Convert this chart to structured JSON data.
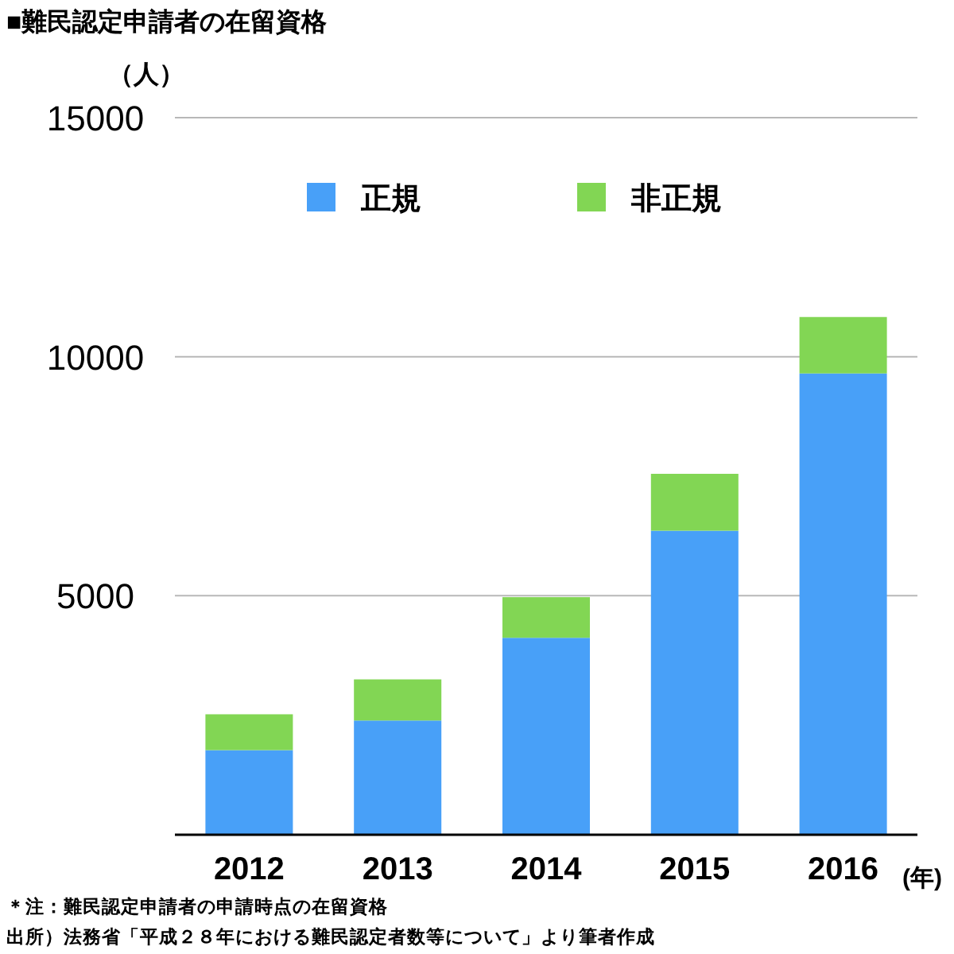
{
  "chart_data": {
    "type": "bar",
    "title": "■難民認定申請者の在留資格",
    "ylabel": "（人）",
    "xlabel": "(年)",
    "categories": [
      "2012",
      "2013",
      "2014",
      "2015",
      "2016"
    ],
    "series": [
      {
        "name": "正規",
        "color": "#48a0f8",
        "values": [
          1770,
          2390,
          4120,
          6360,
          9650
        ]
      },
      {
        "name": "非正規",
        "color": "#82d654",
        "values": [
          750,
          860,
          850,
          1190,
          1180
        ]
      }
    ],
    "stacked": true,
    "ylim": [
      0,
      15000
    ],
    "yticks": [
      5000,
      10000,
      15000
    ],
    "grid": "y",
    "legend": "top",
    "annotations": [
      "＊注：難民認定申請者の申請時点の在留資格",
      "出所）法務省「平成２８年における難民認定者数等について」より筆者作成"
    ]
  }
}
